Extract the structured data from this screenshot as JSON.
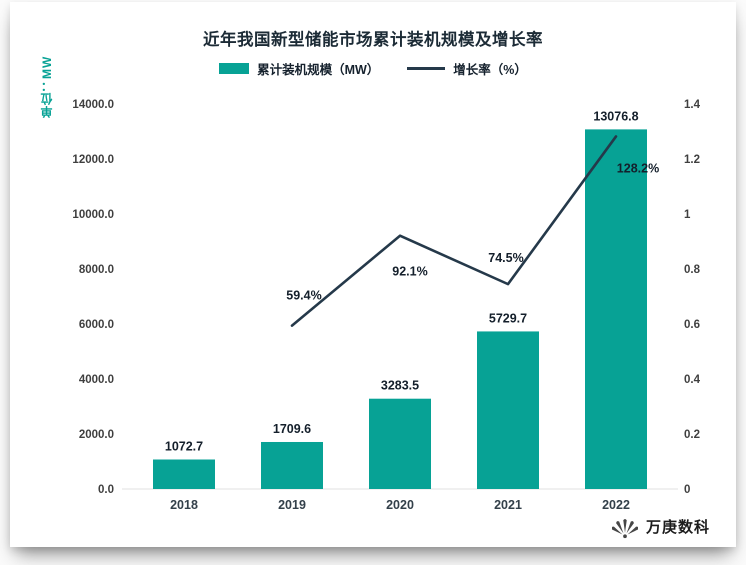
{
  "header": {
    "title": "近年我国新型储能市场累计装机规模及增长率"
  },
  "axis_unit_label": "单位：MW",
  "legend": {
    "items": [
      {
        "label": "累计装机规模（MW）"
      },
      {
        "label": "增长率（%）"
      }
    ]
  },
  "footer": {
    "brand": "万庚数科"
  },
  "colors": {
    "bar": "#07a295",
    "line": "#25394a",
    "title": "#1c2b36",
    "tick": "#3f3f3f",
    "value_label": "#141f2b"
  },
  "chart_data": {
    "type": "bar",
    "combo": "bar+line",
    "title": "近年我国新型储能市场累计装机规模及增长率",
    "categories": [
      "2018",
      "2019",
      "2020",
      "2021",
      "2022"
    ],
    "series": [
      {
        "name": "累计装机规模（MW）",
        "type": "bar",
        "axis": "left",
        "values": [
          1072.7,
          1709.6,
          3283.5,
          5729.7,
          13076.8
        ],
        "labels": [
          "1072.7",
          "1709.6",
          "3283.5",
          "5729.7",
          "13076.8"
        ]
      },
      {
        "name": "增长率（%）",
        "type": "line",
        "axis": "right",
        "values": [
          null,
          0.594,
          0.921,
          0.745,
          1.282
        ],
        "labels": [
          "",
          "59.4%",
          "92.1%",
          "74.5%",
          "128.2%"
        ]
      }
    ],
    "y_left": {
      "label": "单位：MW",
      "min": 0,
      "max": 14000,
      "step": 2000,
      "tick_labels": [
        "0.0",
        "2000.0",
        "4000.0",
        "6000.0",
        "8000.0",
        "10000.0",
        "12000.0",
        "14000.0"
      ]
    },
    "y_right": {
      "min": 0,
      "max": 1.4,
      "step": 0.2,
      "tick_labels": [
        "0",
        "0.2",
        "0.4",
        "0.6",
        "0.8",
        "1",
        "1.2",
        "1.4"
      ]
    },
    "grid": false,
    "legend_position": "top"
  }
}
